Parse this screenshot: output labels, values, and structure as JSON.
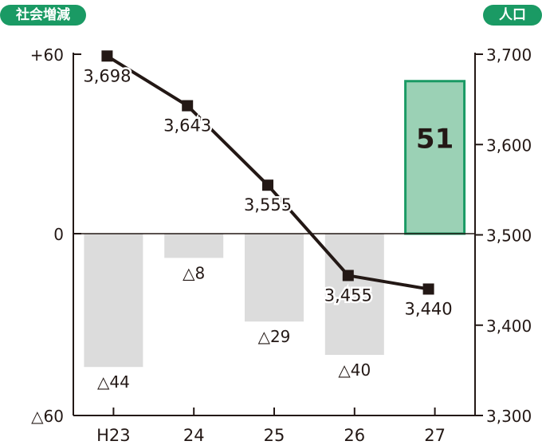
{
  "left_badge": "社会増減",
  "right_badge": "人口",
  "chart_data": {
    "type": "bar+line",
    "categories": [
      "H23",
      "24",
      "25",
      "26",
      "27"
    ],
    "bar_series": {
      "values": [
        -44,
        -8,
        -29,
        -40,
        51
      ],
      "labels": [
        "△44",
        "△8",
        "△29",
        "△40",
        "51"
      ],
      "negative_color": "#dcdcdc",
      "positive_color": "#9bd1b5",
      "positive_border": "#1a9a64"
    },
    "line_series": {
      "values": [
        3698,
        3643,
        3555,
        3455,
        3440
      ],
      "labels": [
        "3,698",
        "3,643",
        "3,555",
        "3,455",
        "3,440"
      ],
      "color": "#231815"
    },
    "left_axis": {
      "ylim": [
        -60,
        60
      ],
      "ticks": [
        60,
        0,
        -60
      ],
      "tick_labels": [
        "+60",
        "0",
        "△60"
      ]
    },
    "right_axis": {
      "ylim": [
        3300,
        3700
      ],
      "ticks": [
        3700,
        3600,
        3500,
        3400,
        3300
      ],
      "tick_labels": [
        "3,700",
        "3,600",
        "3,500",
        "3,400",
        "3,300"
      ]
    },
    "colors": {
      "badge": "#1a9a64",
      "axis": "#231815"
    }
  }
}
